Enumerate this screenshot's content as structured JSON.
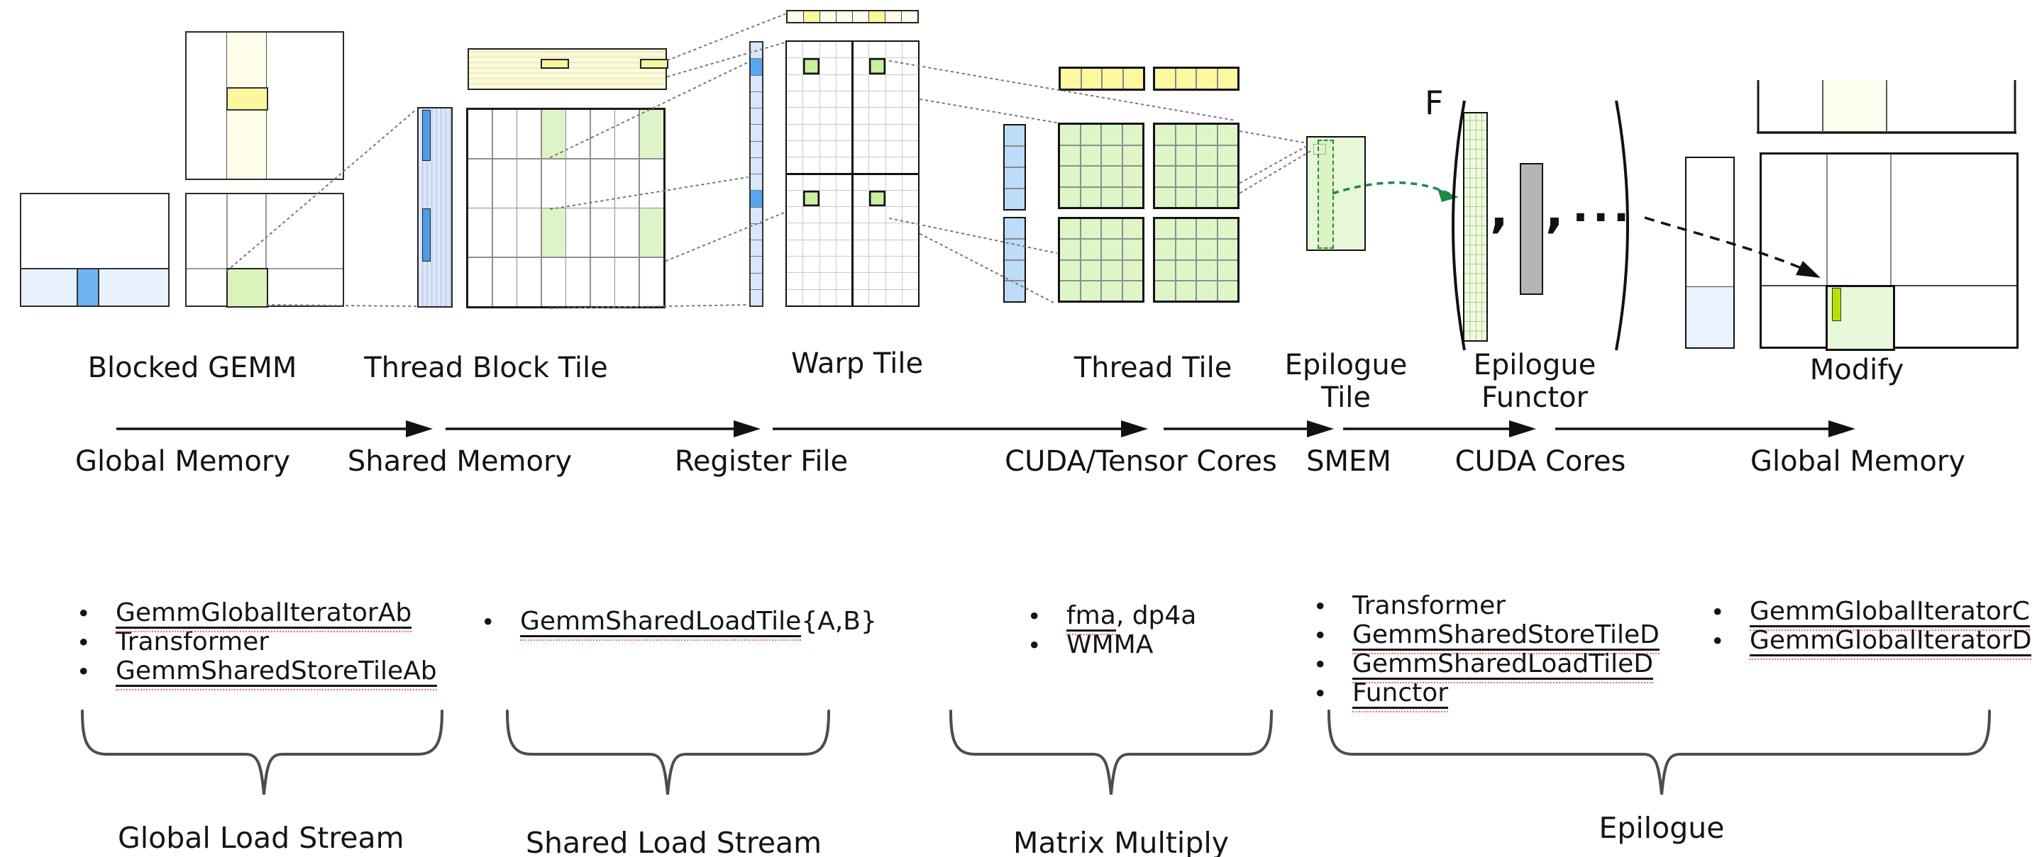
{
  "title_labels": {
    "blocked_gemm": "Blocked GEMM",
    "thread_block_tile": "Thread Block Tile",
    "warp_tile": "Warp Tile",
    "thread_tile": "Thread Tile",
    "epilogue_tile_line1": "Epilogue",
    "epilogue_tile_line2": "Tile",
    "epilogue_functor_line1": "Epilogue",
    "epilogue_functor_line2": "Functor",
    "modify": "Modify"
  },
  "memory_labels": {
    "global_memory_left": "Global Memory",
    "shared_memory": "Shared Memory",
    "register_file": "Register File",
    "cuda_tensor_cores": "CUDA/Tensor Cores",
    "smem": "SMEM",
    "cuda_cores": "CUDA Cores",
    "global_memory_right": "Global Memory"
  },
  "functor_expression": {
    "f": "F",
    "comma1": ",",
    "comma2": ",",
    "ellipsis": "···"
  },
  "bullet_lists": {
    "global_load_stream": {
      "items": [
        {
          "text": "GemmGlobalIteratorAb",
          "suffix": "",
          "underlined": true
        },
        {
          "text": "Transformer",
          "suffix": "",
          "underlined": false
        },
        {
          "text": "GemmSharedStoreTileAb",
          "suffix": "",
          "underlined": true
        }
      ]
    },
    "shared_load_stream": {
      "items": [
        {
          "text": "GemmSharedLoadTile",
          "suffix": "{A,B}",
          "underlined": true
        }
      ]
    },
    "matrix_multiply": {
      "items": [
        {
          "text": "fma",
          "suffix": ", dp4a",
          "underlined": true
        },
        {
          "text": "WMMA",
          "suffix": "",
          "underlined": false
        }
      ]
    },
    "epilogue_main": {
      "items": [
        {
          "text": "Transformer",
          "suffix": "",
          "underlined": false
        },
        {
          "text": "GemmSharedStoreTileD",
          "suffix": "",
          "underlined": true
        },
        {
          "text": "GemmSharedLoadTileD",
          "suffix": "",
          "underlined": true
        },
        {
          "text": "Functor",
          "suffix": "",
          "underlined": true
        }
      ]
    },
    "epilogue_global": {
      "items": [
        {
          "text": "GemmGlobalIteratorC",
          "suffix": "",
          "underlined": true
        },
        {
          "text": "GemmGlobalIteratorD",
          "suffix": "",
          "underlined": true
        }
      ]
    }
  },
  "brace_labels": {
    "global_load_stream": "Global Load Stream",
    "shared_load_stream": "Shared Load Stream",
    "matrix_multiply": "Matrix Multiply",
    "epilogue": "Epilogue"
  },
  "bullet_char": "•",
  "colors": {
    "outline": "#1a1a1a",
    "thin_line": "#8c8c8c",
    "light_blue": "#e8f2fd",
    "blue": "#6fb3f2",
    "strip_blue": "#dbe7f7",
    "strip_blue_dark": "#4f9be8",
    "pale_yellow": "#fdfdea",
    "yellow": "#faf89e",
    "banded_yellow": "#fbfbda",
    "pale_green": "#def3c7",
    "warp_green": "#c9ef9f",
    "tile_green": "#e6f7da",
    "thread_green": "#def5c8",
    "chartreuse": "#b8e003",
    "gray_bar": "#b5b5b5",
    "brace": "#4d4d4d",
    "underline_red": "#f26d6d",
    "green_arrow": "#1e8a45"
  },
  "tiles": {
    "tbt_grid": {
      "cols": 8,
      "rows": 4,
      "highlights": [
        [
          0,
          3
        ],
        [
          0,
          7
        ],
        [
          2,
          3
        ],
        [
          2,
          7
        ]
      ]
    },
    "warp_top_strip": {
      "cols": 8,
      "rows": 1,
      "highlights": [
        [
          0,
          1
        ],
        [
          0,
          5
        ]
      ]
    },
    "warp_left_strip": {
      "cols": 1,
      "rows": 16,
      "highlights": [
        [
          1,
          0
        ],
        [
          9,
          0
        ]
      ]
    },
    "warp_grid": {
      "cols": 8,
      "rows": 16,
      "highlights": [
        [
          1,
          1
        ],
        [
          1,
          5
        ],
        [
          9,
          1
        ],
        [
          9,
          5
        ]
      ]
    },
    "thread_yellow_strip": {
      "cols": 4,
      "rows": 1,
      "highlights": []
    },
    "thread_blue_strip": {
      "cols": 1,
      "rows": 4,
      "highlights": []
    },
    "thread_green_grid": {
      "cols": 4,
      "rows": 4,
      "highlights": []
    }
  }
}
